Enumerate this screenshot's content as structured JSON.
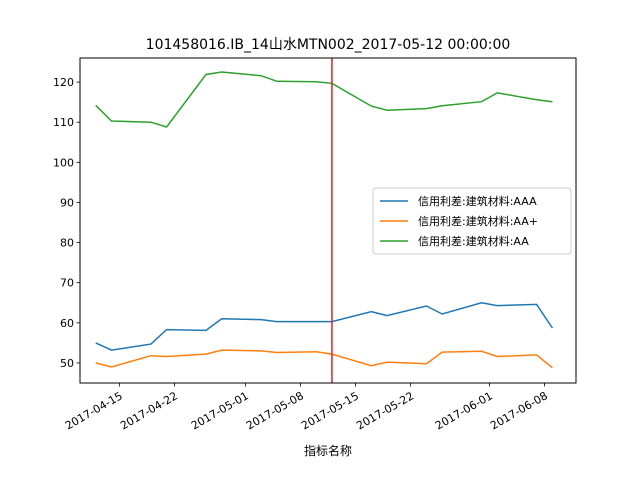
{
  "chart_data": {
    "type": "line",
    "title": "101458016.IB_14山水MTN002_2017-05-12 00:00:00",
    "xlabel": "指标名称",
    "ylabel": "",
    "x_tick_labels": [
      "2017-04-15",
      "2017-04-22",
      "2017-05-01",
      "2017-05-08",
      "2017-05-15",
      "2017-05-22",
      "2017-06-01",
      "2017-06-08"
    ],
    "xlim": [
      "2017-04-10",
      "2017-06-12"
    ],
    "ylim": [
      45,
      126
    ],
    "y_ticks": [
      50,
      60,
      70,
      80,
      90,
      100,
      110,
      120
    ],
    "grid": false,
    "legend_position": "right",
    "vline": {
      "x": "2017-05-12",
      "color": "#d62728"
    },
    "series": [
      {
        "name": "信用利差:建筑材料:AAA",
        "color": "#1f77b4",
        "points": [
          [
            "2017-04-12",
            55.0
          ],
          [
            "2017-04-14",
            53.2
          ],
          [
            "2017-04-19",
            54.7
          ],
          [
            "2017-04-21",
            58.3
          ],
          [
            "2017-04-26",
            58.1
          ],
          [
            "2017-04-28",
            61.0
          ],
          [
            "2017-05-03",
            60.8
          ],
          [
            "2017-05-05",
            60.3
          ],
          [
            "2017-05-10",
            60.3
          ],
          [
            "2017-05-12",
            60.3
          ],
          [
            "2017-05-17",
            62.8
          ],
          [
            "2017-05-19",
            61.8
          ],
          [
            "2017-05-24",
            64.2
          ],
          [
            "2017-05-26",
            62.2
          ],
          [
            "2017-05-31",
            65.0
          ],
          [
            "2017-06-02",
            64.3
          ],
          [
            "2017-06-07",
            64.6
          ],
          [
            "2017-06-09",
            58.7
          ]
        ]
      },
      {
        "name": "信用利差:建筑材料:AA+",
        "color": "#ff7f0e",
        "points": [
          [
            "2017-04-12",
            50.0
          ],
          [
            "2017-04-14",
            49.0
          ],
          [
            "2017-04-19",
            51.8
          ],
          [
            "2017-04-21",
            51.6
          ],
          [
            "2017-04-26",
            52.2
          ],
          [
            "2017-04-28",
            53.2
          ],
          [
            "2017-05-03",
            53.0
          ],
          [
            "2017-05-05",
            52.6
          ],
          [
            "2017-05-10",
            52.8
          ],
          [
            "2017-05-12",
            52.2
          ],
          [
            "2017-05-17",
            49.3
          ],
          [
            "2017-05-19",
            50.2
          ],
          [
            "2017-05-24",
            49.8
          ],
          [
            "2017-05-26",
            52.7
          ],
          [
            "2017-05-31",
            52.9
          ],
          [
            "2017-06-02",
            51.6
          ],
          [
            "2017-06-07",
            52.0
          ],
          [
            "2017-06-09",
            48.8
          ]
        ]
      },
      {
        "name": "信用利差:建筑材料:AA",
        "color": "#2ca02c",
        "points": [
          [
            "2017-04-12",
            114.2
          ],
          [
            "2017-04-14",
            110.3
          ],
          [
            "2017-04-19",
            110.0
          ],
          [
            "2017-04-21",
            108.8
          ],
          [
            "2017-04-26",
            121.9
          ],
          [
            "2017-04-28",
            122.5
          ],
          [
            "2017-05-03",
            121.6
          ],
          [
            "2017-05-05",
            120.2
          ],
          [
            "2017-05-10",
            120.1
          ],
          [
            "2017-05-12",
            119.7
          ],
          [
            "2017-05-17",
            114.0
          ],
          [
            "2017-05-19",
            113.0
          ],
          [
            "2017-05-24",
            113.4
          ],
          [
            "2017-05-26",
            114.1
          ],
          [
            "2017-05-31",
            115.1
          ],
          [
            "2017-06-02",
            117.3
          ],
          [
            "2017-06-07",
            115.6
          ],
          [
            "2017-06-09",
            115.1
          ]
        ]
      }
    ]
  }
}
